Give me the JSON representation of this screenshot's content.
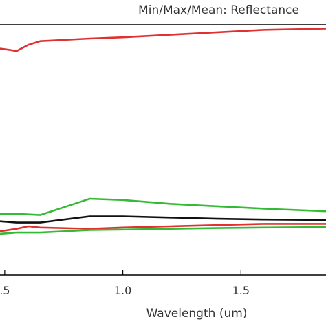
{
  "chart_data": {
    "type": "line",
    "title": "Min/Max/Mean: Reflectance",
    "xlabel": "Wavelength (um)",
    "ylabel": "",
    "x_ticks": [
      0.5,
      1.0,
      1.5
    ],
    "x_tick_labels": [
      ".5",
      "1.0",
      "1.5"
    ],
    "xlim": [
      0.48,
      1.86
    ],
    "ylim": [
      0,
      1
    ],
    "grid": false,
    "legend": "none",
    "series": [
      {
        "color": "#e03030",
        "x": [
          0.48,
          0.52,
          0.55,
          0.6,
          0.65,
          0.86,
          1.0,
          1.2,
          1.4,
          1.6,
          1.86
        ],
        "y": [
          0.905,
          0.9,
          0.895,
          0.92,
          0.935,
          0.945,
          0.95,
          0.96,
          0.97,
          0.98,
          0.985
        ]
      },
      {
        "color": "#33bb33",
        "x": [
          0.48,
          0.55,
          0.65,
          0.86,
          1.0,
          1.2,
          1.4,
          1.6,
          1.86
        ],
        "y": [
          0.245,
          0.245,
          0.24,
          0.305,
          0.3,
          0.285,
          0.275,
          0.265,
          0.255
        ]
      },
      {
        "color": "#111111",
        "x": [
          0.48,
          0.55,
          0.65,
          0.86,
          1.0,
          1.2,
          1.4,
          1.6,
          1.86
        ],
        "y": [
          0.215,
          0.21,
          0.21,
          0.235,
          0.235,
          0.23,
          0.225,
          0.222,
          0.22
        ]
      },
      {
        "color": "#e03030",
        "x": [
          0.48,
          0.55,
          0.6,
          0.65,
          0.86,
          1.0,
          1.2,
          1.4,
          1.6,
          1.86
        ],
        "y": [
          0.175,
          0.185,
          0.195,
          0.19,
          0.185,
          0.19,
          0.195,
          0.2,
          0.205,
          0.205
        ]
      },
      {
        "color": "#33bb33",
        "x": [
          0.48,
          0.55,
          0.65,
          0.86,
          1.0,
          1.2,
          1.4,
          1.6,
          1.86
        ],
        "y": [
          0.165,
          0.17,
          0.17,
          0.18,
          0.182,
          0.185,
          0.188,
          0.19,
          0.192
        ]
      }
    ]
  }
}
